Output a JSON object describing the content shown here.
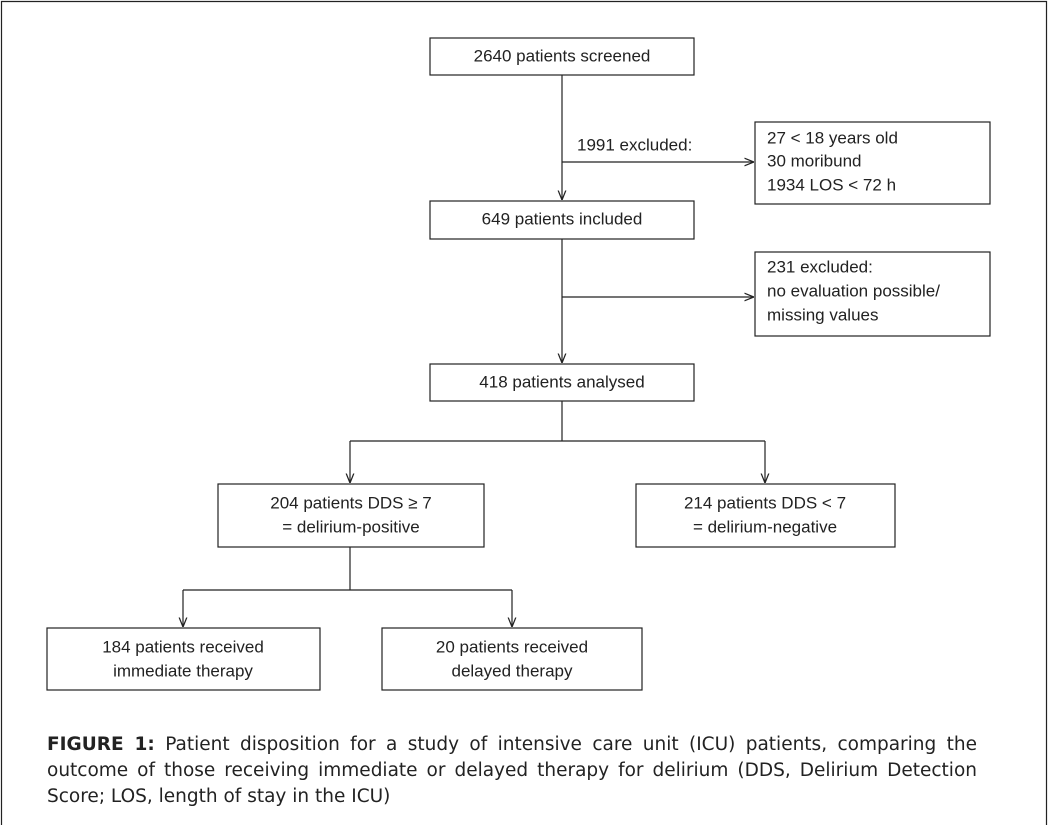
{
  "nodes": [
    {
      "lines": [
        "2640 patients screened"
      ]
    },
    {
      "lines": [
        "27 < 18 years old",
        "30 moribund",
        "1934 LOS < 72 h"
      ]
    },
    {
      "lines": [
        "649 patients included"
      ]
    },
    {
      "lines": [
        "231 excluded:",
        "no evaluation possible/",
        "missing values"
      ]
    },
    {
      "lines": [
        "418 patients analysed"
      ]
    },
    {
      "lines": [
        "204 patients DDS ≥ 7",
        "= delirium-positive"
      ]
    },
    {
      "lines": [
        "214 patients DDS < 7",
        "= delirium-negative"
      ]
    },
    {
      "lines": [
        "184 patients received",
        "immediate therapy"
      ]
    },
    {
      "lines": [
        "20 patients received",
        "delayed therapy"
      ]
    }
  ],
  "edge_labels": [
    "1991 excluded:"
  ],
  "caption": {
    "label": "FIGURE 1:",
    "text": "Patient disposition for a study of intensive care unit (ICU) patients, comparing the outcome of those receiving immediate or delayed therapy for delirium (DDS, Delirium Detection Score; LOS, length of stay in the ICU)"
  }
}
